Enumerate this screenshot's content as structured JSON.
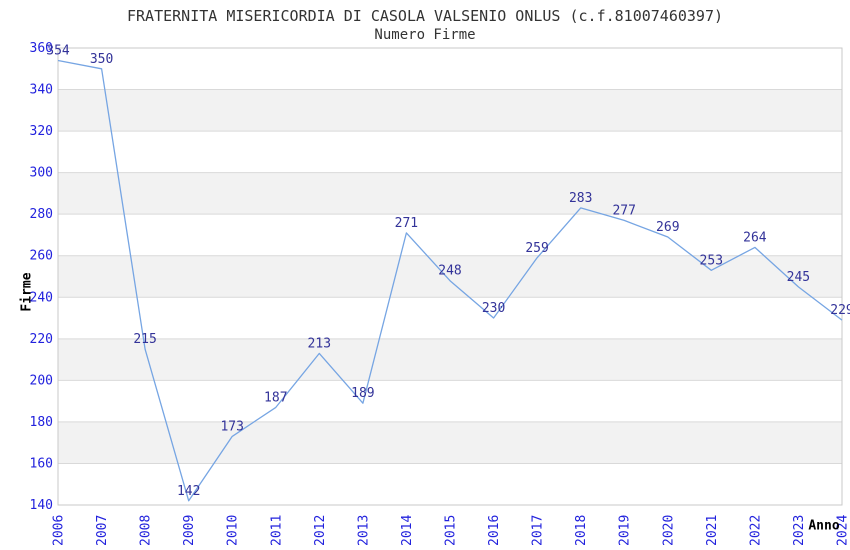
{
  "header": {
    "title": "FRATERNITA MISERICORDIA DI CASOLA VALSENIO ONLUS (c.f.81007460397)",
    "subtitle": "Numero Firme"
  },
  "chart_data": {
    "type": "line",
    "title": "FRATERNITA MISERICORDIA DI CASOLA VALSENIO ONLUS (c.f.81007460397)",
    "subtitle": "Numero Firme",
    "xlabel": "Anno",
    "ylabel": "Firme",
    "x": [
      "2006",
      "2007",
      "2008",
      "2009",
      "2010",
      "2011",
      "2012",
      "2013",
      "2014",
      "2015",
      "2016",
      "2017",
      "2018",
      "2019",
      "2020",
      "2021",
      "2022",
      "2023",
      "2024"
    ],
    "values": [
      354,
      350,
      215,
      142,
      173,
      187,
      213,
      189,
      271,
      248,
      230,
      259,
      283,
      277,
      269,
      253,
      264,
      245,
      229
    ],
    "ylim": [
      140,
      360
    ],
    "ytick_step": 20,
    "grid": true,
    "legend": false,
    "point_labels_visible": true,
    "colors": {
      "line": "#76a5e3",
      "point_label": "#333399",
      "tick_label": "#2222dd",
      "band_main": "#ffffff",
      "band_alt": "#f2f2f2",
      "gridline": "#d9d9d9",
      "plot_border": "#c9c9c9",
      "title_text": "#333333",
      "axis_name_text": "#000000"
    }
  }
}
